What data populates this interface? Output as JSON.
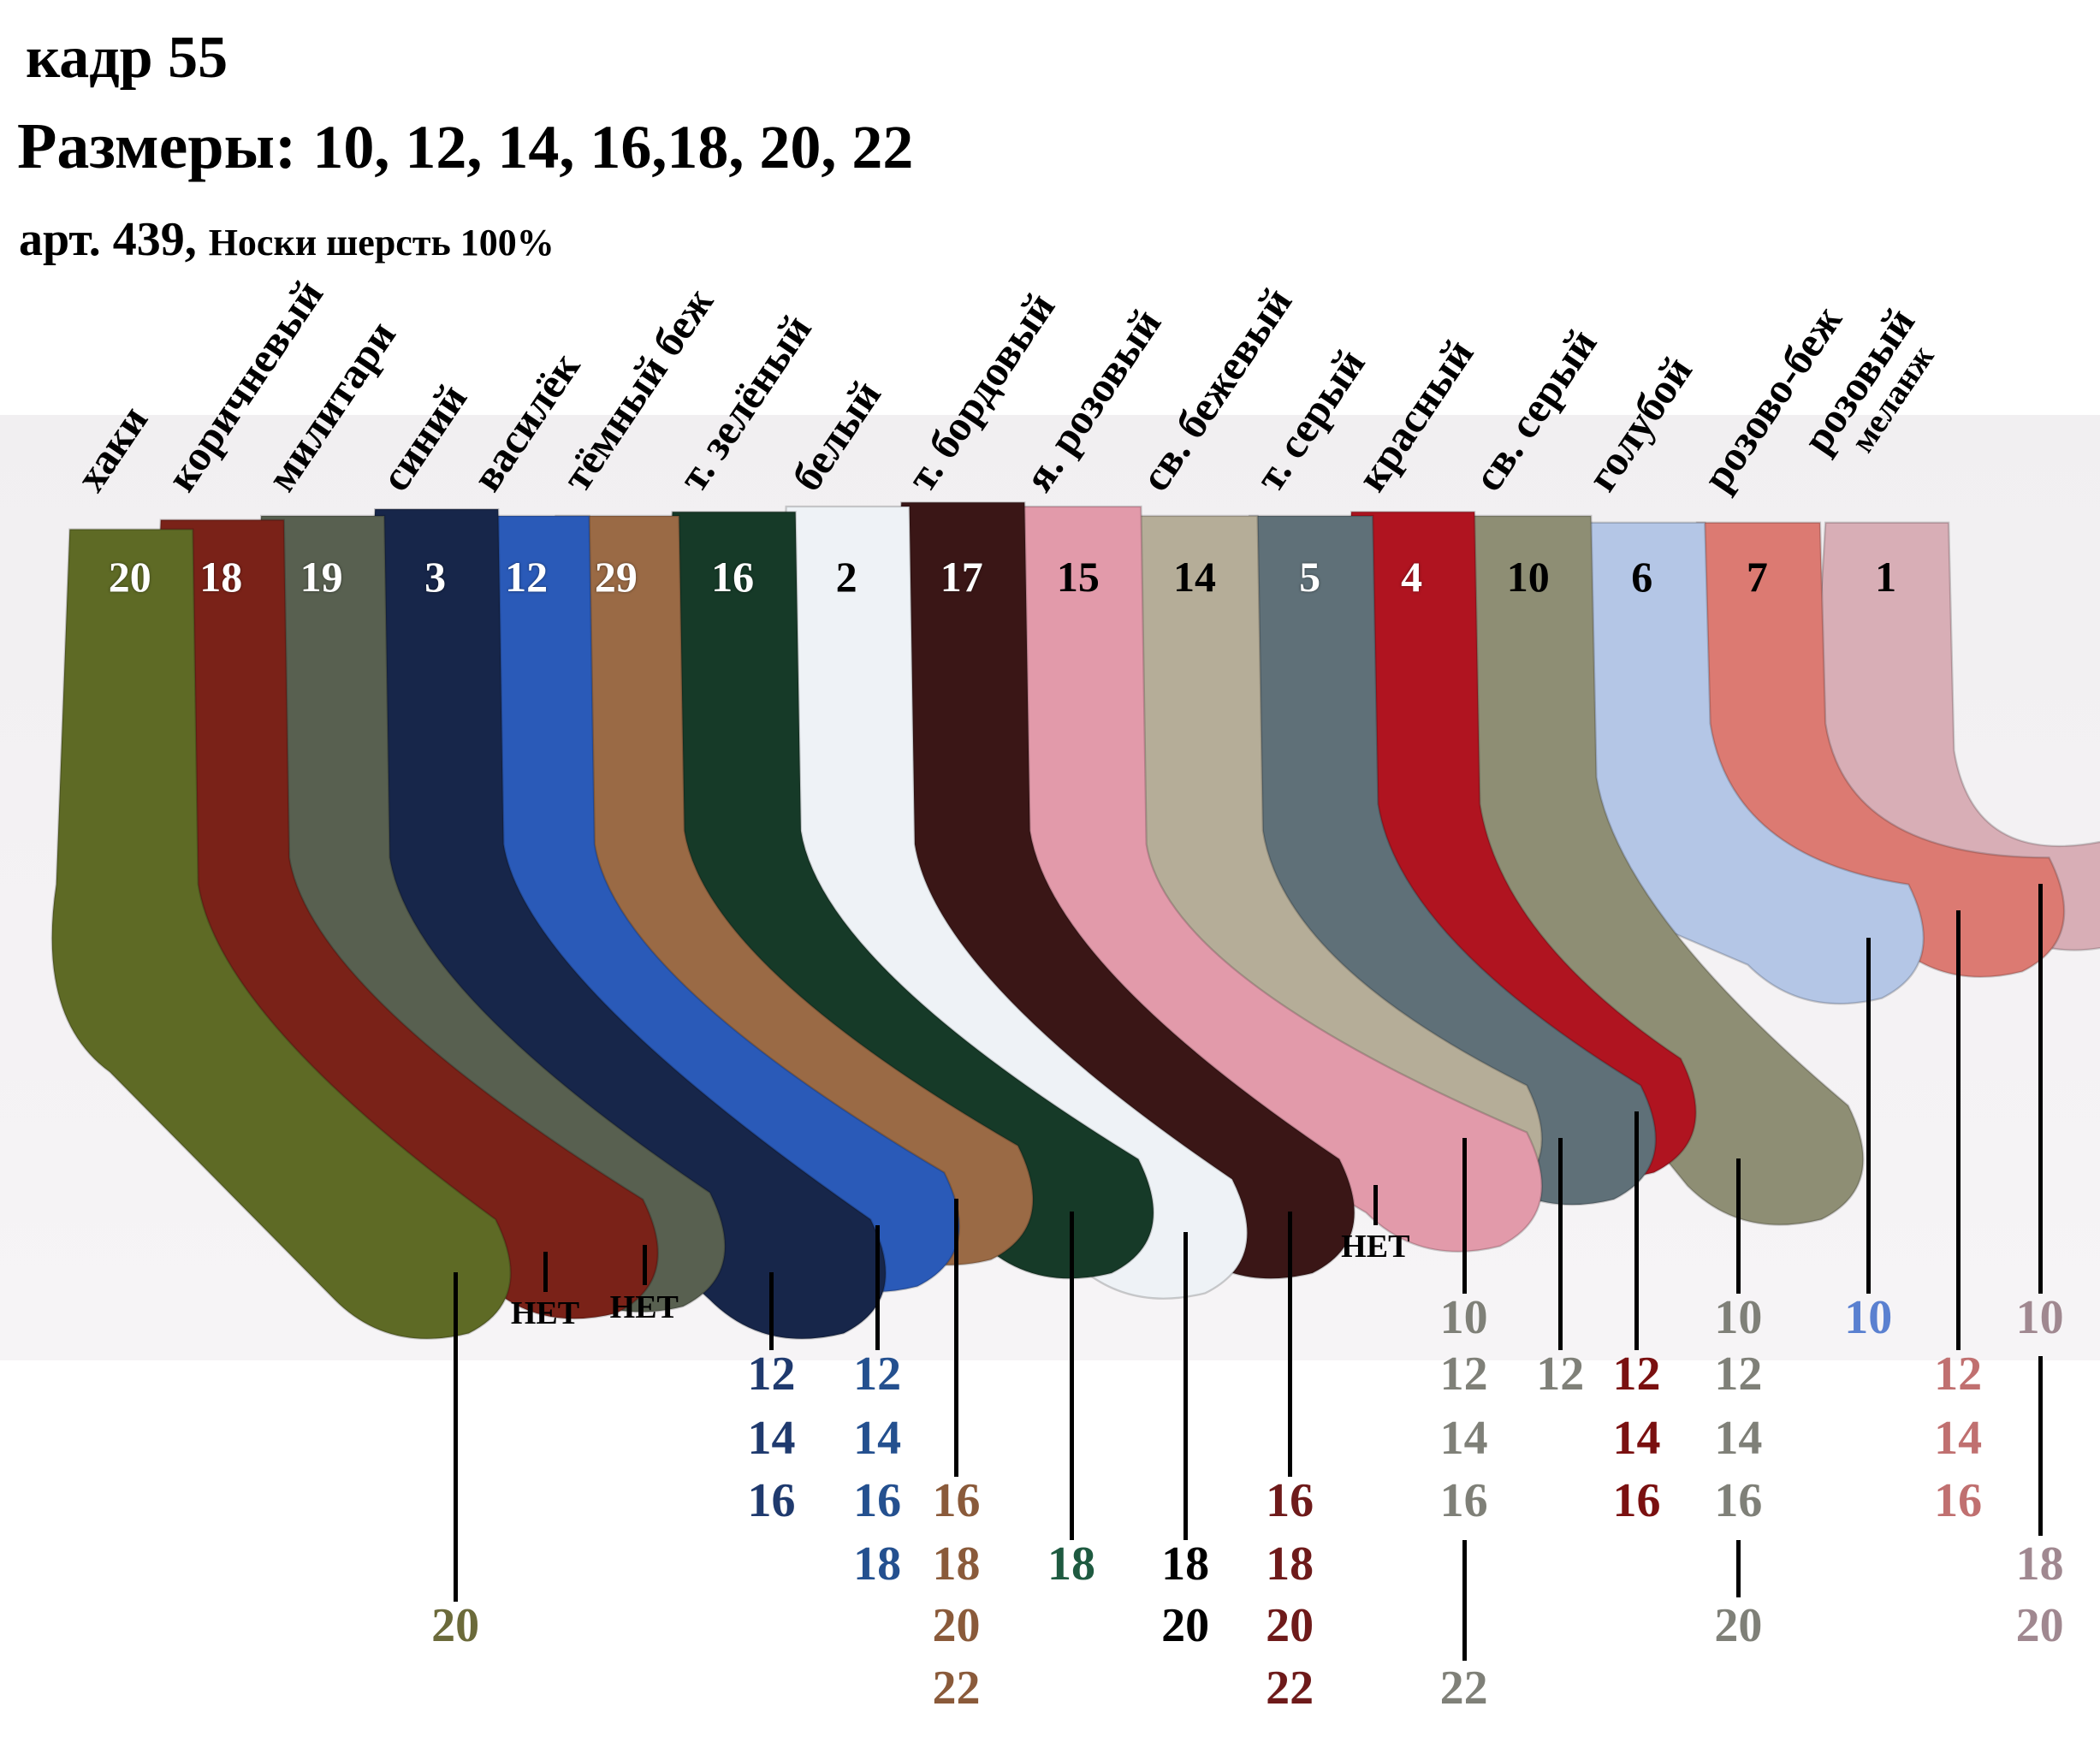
{
  "header": {
    "frame": "кадр 55",
    "sizes_label": "Размеры:",
    "sizes_values": "10, 12, 14, 16,18, 20, 22",
    "article": "арт. 439,",
    "product": "Носки шерсть 100%"
  },
  "none_label": "НЕТ",
  "socks": [
    {
      "name": "хаки",
      "code": "20",
      "color": "#5e6a25",
      "text_color": "#6b6a3a",
      "sizes": [
        "20"
      ]
    },
    {
      "name": "коричневый",
      "code": "18",
      "color": "#7a2218",
      "text_color": "#000000",
      "sizes": [],
      "none": true
    },
    {
      "name": "милитари",
      "code": "19",
      "color": "#586050",
      "text_color": "#000000",
      "sizes": [],
      "none": true
    },
    {
      "name": "синий",
      "code": "3",
      "color": "#17264a",
      "text_color": "#1f3a6e",
      "sizes": [
        "12",
        "14",
        "16"
      ]
    },
    {
      "name": "василёк",
      "code": "12",
      "color": "#2a5ab8",
      "text_color": "#24508f",
      "sizes": [
        "12",
        "14",
        "16",
        "18"
      ]
    },
    {
      "name": "тёмный беж",
      "code": "29",
      "color": "#9a6a45",
      "text_color": "#8a5a3a",
      "sizes": [
        "16",
        "18",
        "20",
        "22"
      ]
    },
    {
      "name": "т. зелёный",
      "code": "16",
      "color": "#163a28",
      "text_color": "#1e5a40",
      "sizes": [
        "18"
      ]
    },
    {
      "name": "белый",
      "code": "2",
      "color": "#eef2f6",
      "text_color": "#000000",
      "sizes": [
        "18",
        "20"
      ]
    },
    {
      "name": "т. бордовый",
      "code": "17",
      "color": "#3a1616",
      "text_color": "#6e1a1a",
      "sizes": [
        "16",
        "18",
        "20",
        "22"
      ]
    },
    {
      "name": "я. розовый",
      "code": "15",
      "color": "#e29aaa",
      "text_color": "#000000",
      "sizes": [],
      "none": true
    },
    {
      "name": "св. бежевый",
      "code": "14",
      "color": "#b5ad98",
      "text_color": "#7f8078",
      "sizes": [
        "10",
        "12",
        "14",
        "16",
        "22"
      ]
    },
    {
      "name": "т. серый",
      "code": "5",
      "color": "#5f7078",
      "text_color": "#7f8078",
      "sizes": [
        "12"
      ]
    },
    {
      "name": "красный",
      "code": "4",
      "color": "#b01420",
      "text_color": "#7a1010",
      "sizes": [
        "12",
        "14",
        "16"
      ]
    },
    {
      "name": "св. серый",
      "code": "10",
      "color": "#8e8e74",
      "text_color": "#7f8078",
      "sizes": [
        "10",
        "12",
        "14",
        "16",
        "20"
      ]
    },
    {
      "name": "голубой",
      "code": "6",
      "color": "#b4c6e6",
      "text_color": "#5a80d0",
      "sizes": [
        "10"
      ]
    },
    {
      "name": "розово-беж",
      "code": "7",
      "color": "#dc7a72",
      "text_color": "#c07070",
      "sizes": [
        "12",
        "14",
        "16"
      ]
    },
    {
      "name": "розовый",
      "name2": "меланж",
      "code": "1",
      "color": "#d8aeb6",
      "text_color": "#a08890",
      "sizes": [
        "10",
        "18",
        "20"
      ]
    }
  ]
}
